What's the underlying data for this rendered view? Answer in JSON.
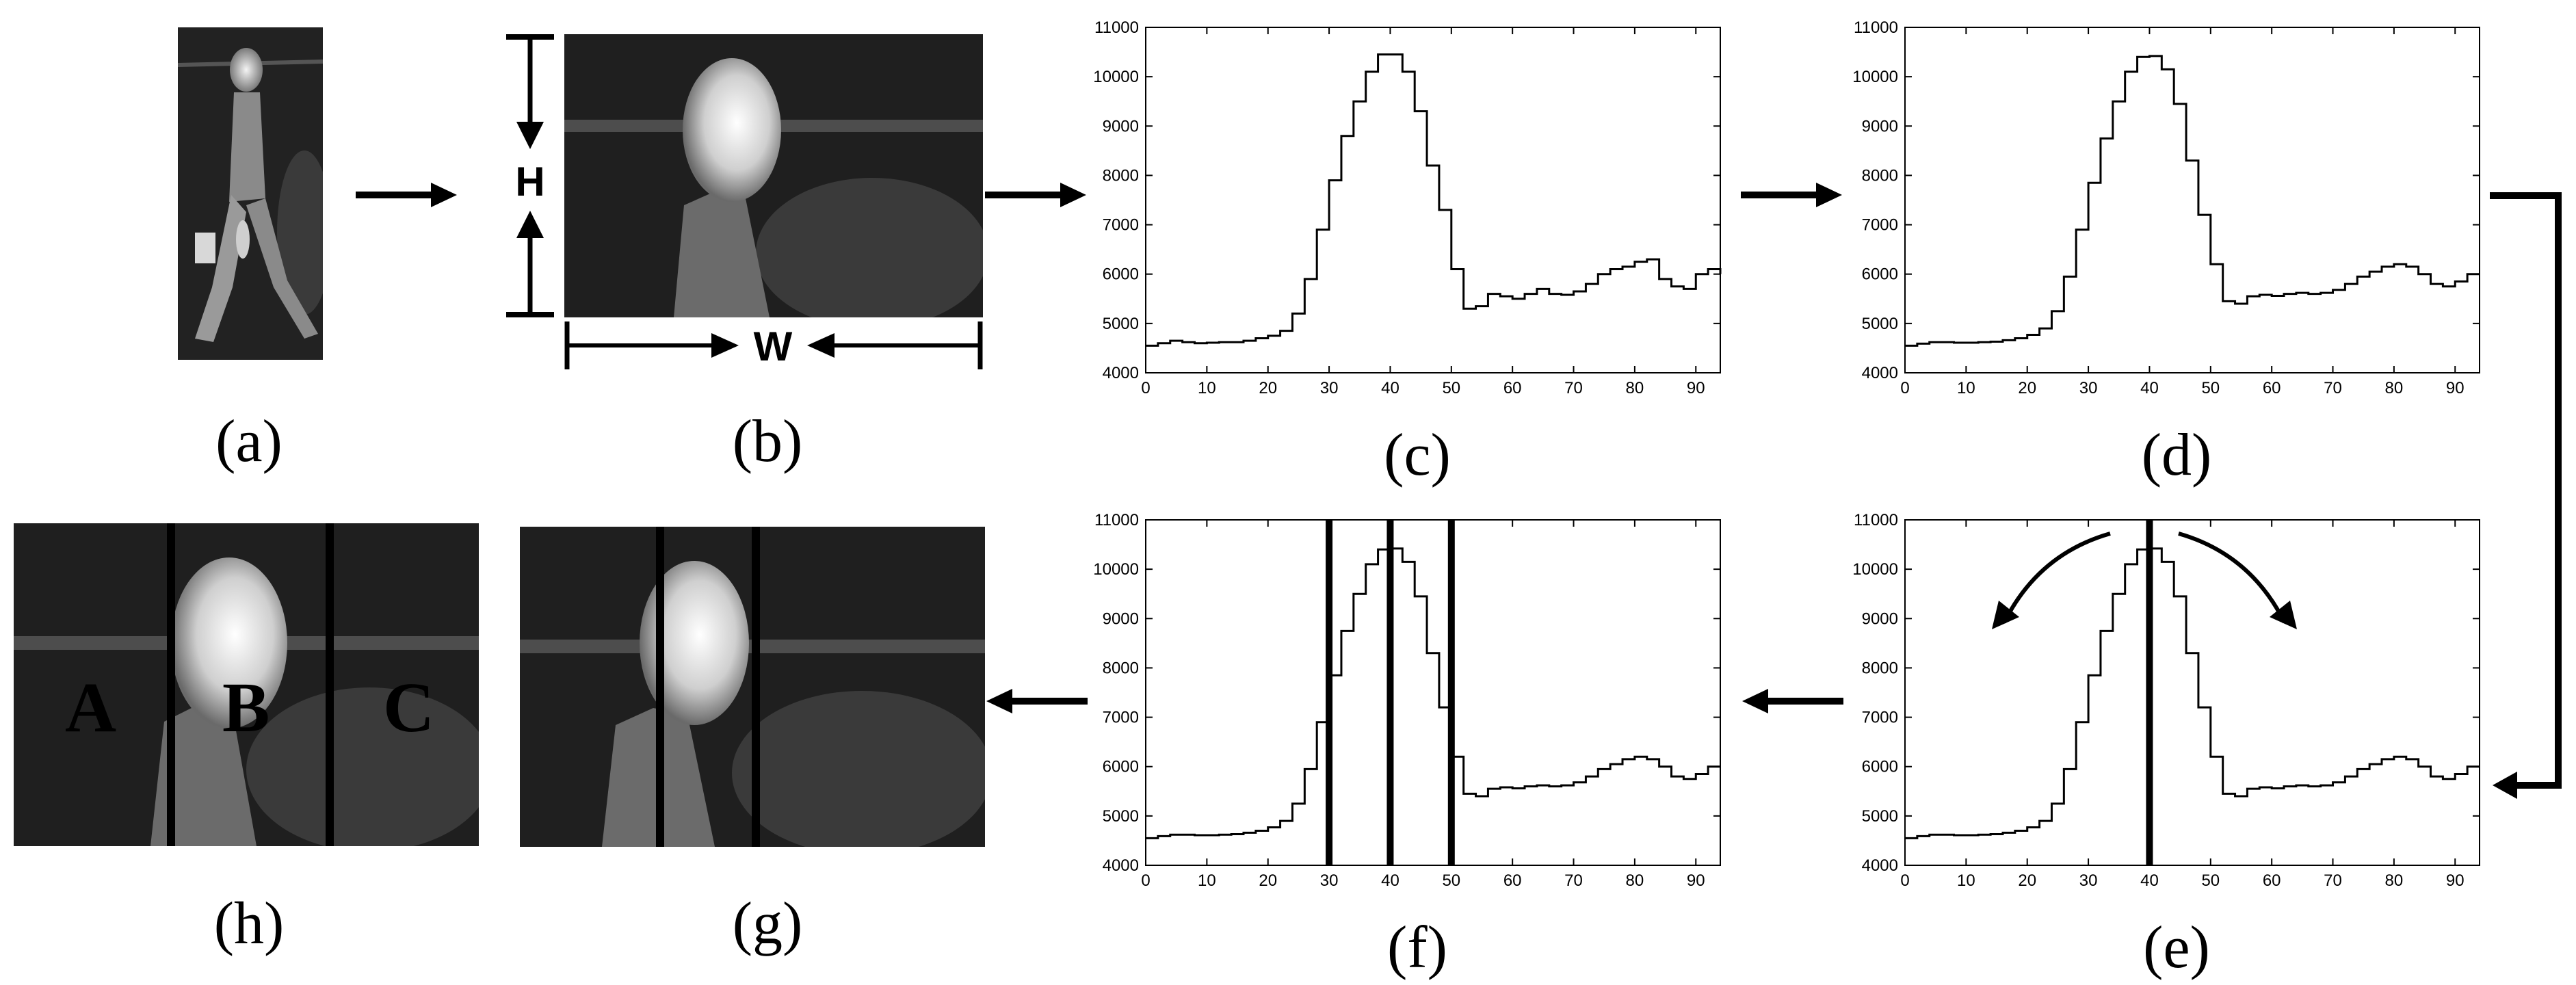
{
  "panels": {
    "a": {
      "label": "(a)"
    },
    "b": {
      "label": "(b)",
      "height_label": "H",
      "width_label": "W"
    },
    "c": {
      "label": "(c)"
    },
    "d": {
      "label": "(d)"
    },
    "e": {
      "label": "(e)"
    },
    "f": {
      "label": "(f)"
    },
    "g": {
      "label": "(g)"
    },
    "h": {
      "label": "(h)",
      "zones": [
        "A",
        "B",
        "C"
      ]
    }
  },
  "colors": {
    "background": "#ffffff",
    "thermal_bg": "#1e1e1e",
    "stroke": "#000000"
  },
  "chart_data": [
    {
      "id": "c",
      "type": "line",
      "title": "",
      "xlabel": "",
      "ylabel": "",
      "xlim": [
        0,
        94
      ],
      "ylim": [
        4000,
        11000
      ],
      "xticks": [
        0,
        10,
        20,
        30,
        40,
        50,
        60,
        70,
        80,
        90
      ],
      "yticks": [
        4000,
        5000,
        6000,
        7000,
        8000,
        9000,
        10000,
        11000
      ],
      "step": true,
      "smooth": false,
      "markers": [],
      "x": [
        0,
        2,
        4,
        6,
        8,
        10,
        12,
        14,
        16,
        18,
        20,
        22,
        24,
        26,
        28,
        30,
        32,
        34,
        36,
        38,
        40,
        42,
        44,
        46,
        48,
        50,
        52,
        54,
        56,
        58,
        60,
        62,
        64,
        66,
        68,
        70,
        72,
        74,
        76,
        78,
        80,
        82,
        84,
        86,
        88,
        90,
        92,
        94
      ],
      "y": [
        4550,
        4600,
        4650,
        4620,
        4600,
        4610,
        4620,
        4620,
        4650,
        4700,
        4750,
        4850,
        5200,
        5900,
        6900,
        7900,
        8800,
        9500,
        10100,
        10450,
        10450,
        10100,
        9300,
        8200,
        7300,
        6100,
        5300,
        5350,
        5600,
        5550,
        5500,
        5600,
        5700,
        5600,
        5580,
        5650,
        5800,
        6000,
        6100,
        6150,
        6250,
        6300,
        5900,
        5750,
        5700,
        6000,
        6100,
        6000
      ]
    },
    {
      "id": "d",
      "type": "line",
      "title": "",
      "xlabel": "",
      "ylabel": "",
      "xlim": [
        0,
        94
      ],
      "ylim": [
        4000,
        11000
      ],
      "xticks": [
        0,
        10,
        20,
        30,
        40,
        50,
        60,
        70,
        80,
        90
      ],
      "yticks": [
        4000,
        5000,
        6000,
        7000,
        8000,
        9000,
        10000,
        11000
      ],
      "step": true,
      "smooth": true,
      "markers": [],
      "x": [
        0,
        2,
        4,
        6,
        8,
        10,
        12,
        14,
        16,
        18,
        20,
        22,
        24,
        26,
        28,
        30,
        32,
        34,
        36,
        38,
        40,
        42,
        44,
        46,
        48,
        50,
        52,
        54,
        56,
        58,
        60,
        62,
        64,
        66,
        68,
        70,
        72,
        74,
        76,
        78,
        80,
        82,
        84,
        86,
        88,
        90,
        92,
        94
      ],
      "y": [
        4550,
        4590,
        4620,
        4620,
        4610,
        4610,
        4620,
        4630,
        4660,
        4700,
        4770,
        4900,
        5250,
        5950,
        6900,
        7850,
        8750,
        9500,
        10100,
        10400,
        10420,
        10150,
        9450,
        8300,
        7200,
        6200,
        5450,
        5400,
        5550,
        5580,
        5560,
        5600,
        5620,
        5600,
        5620,
        5680,
        5800,
        5950,
        6050,
        6150,
        6200,
        6150,
        6000,
        5800,
        5750,
        5850,
        6000,
        6000
      ]
    },
    {
      "id": "e",
      "type": "line",
      "title": "",
      "xlabel": "",
      "ylabel": "",
      "xlim": [
        0,
        94
      ],
      "ylim": [
        4000,
        11000
      ],
      "xticks": [
        0,
        10,
        20,
        30,
        40,
        50,
        60,
        70,
        80,
        90
      ],
      "yticks": [
        4000,
        5000,
        6000,
        7000,
        8000,
        9000,
        10000,
        11000
      ],
      "step": true,
      "smooth": true,
      "markers": [
        40
      ],
      "x": [
        0,
        2,
        4,
        6,
        8,
        10,
        12,
        14,
        16,
        18,
        20,
        22,
        24,
        26,
        28,
        30,
        32,
        34,
        36,
        38,
        40,
        42,
        44,
        46,
        48,
        50,
        52,
        54,
        56,
        58,
        60,
        62,
        64,
        66,
        68,
        70,
        72,
        74,
        76,
        78,
        80,
        82,
        84,
        86,
        88,
        90,
        92,
        94
      ],
      "y": [
        4550,
        4590,
        4620,
        4620,
        4610,
        4610,
        4620,
        4630,
        4660,
        4700,
        4770,
        4900,
        5250,
        5950,
        6900,
        7850,
        8750,
        9500,
        10100,
        10400,
        10420,
        10150,
        9450,
        8300,
        7200,
        6200,
        5450,
        5400,
        5550,
        5580,
        5560,
        5600,
        5620,
        5600,
        5620,
        5680,
        5800,
        5950,
        6050,
        6150,
        6200,
        6150,
        6000,
        5800,
        5750,
        5850,
        6000,
        6000
      ]
    },
    {
      "id": "f",
      "type": "line",
      "title": "",
      "xlabel": "",
      "ylabel": "",
      "xlim": [
        0,
        94
      ],
      "ylim": [
        4000,
        11000
      ],
      "xticks": [
        0,
        10,
        20,
        30,
        40,
        50,
        60,
        70,
        80,
        90
      ],
      "yticks": [
        4000,
        5000,
        6000,
        7000,
        8000,
        9000,
        10000,
        11000
      ],
      "step": true,
      "smooth": true,
      "markers": [
        30,
        40,
        50
      ],
      "x": [
        0,
        2,
        4,
        6,
        8,
        10,
        12,
        14,
        16,
        18,
        20,
        22,
        24,
        26,
        28,
        30,
        32,
        34,
        36,
        38,
        40,
        42,
        44,
        46,
        48,
        50,
        52,
        54,
        56,
        58,
        60,
        62,
        64,
        66,
        68,
        70,
        72,
        74,
        76,
        78,
        80,
        82,
        84,
        86,
        88,
        90,
        92,
        94
      ],
      "y": [
        4550,
        4590,
        4620,
        4620,
        4610,
        4610,
        4620,
        4630,
        4660,
        4700,
        4770,
        4900,
        5250,
        5950,
        6900,
        7850,
        8750,
        9500,
        10100,
        10400,
        10420,
        10150,
        9450,
        8300,
        7200,
        6200,
        5450,
        5400,
        5550,
        5580,
        5560,
        5600,
        5620,
        5600,
        5620,
        5680,
        5800,
        5950,
        6050,
        6150,
        6200,
        6150,
        6000,
        5800,
        5750,
        5850,
        6000,
        6000
      ]
    }
  ]
}
